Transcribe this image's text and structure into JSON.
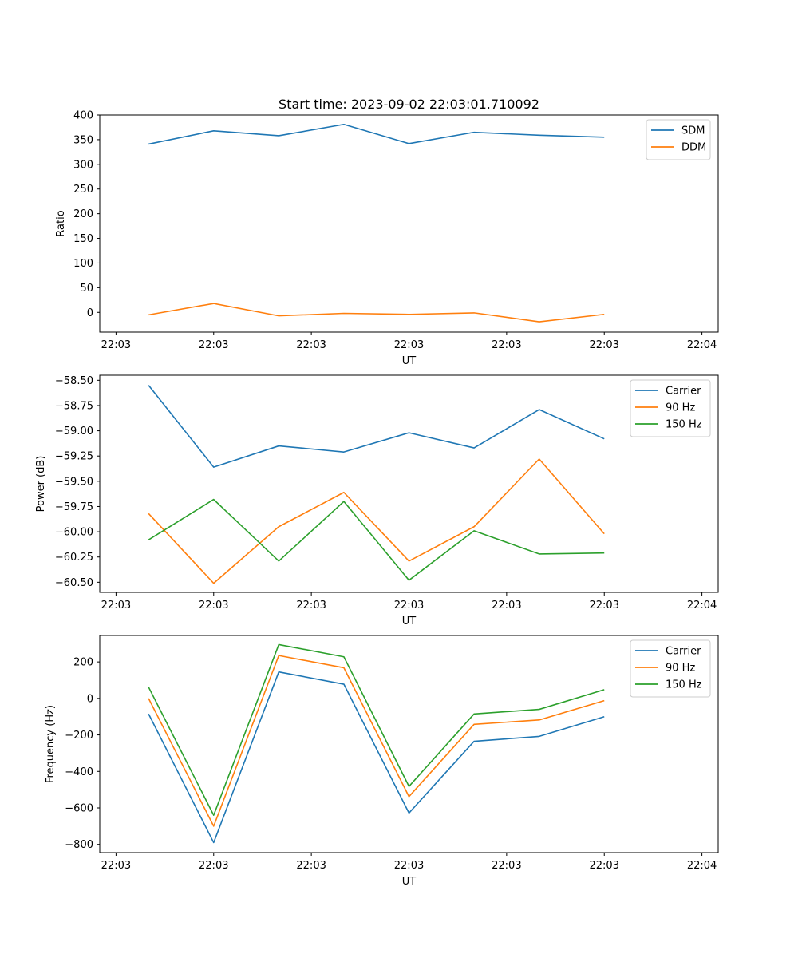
{
  "title": "Start time: 2023-09-02 22:03:01.710092",
  "colors": {
    "blue": "#1f77b4",
    "orange": "#ff7f0e",
    "green": "#2ca02c"
  },
  "chart_data": [
    {
      "type": "line",
      "xlabel": "UT",
      "ylabel": "Ratio",
      "xtick_labels": [
        "22:03",
        "22:03",
        "22:03",
        "22:03",
        "22:03",
        "22:03",
        "22:04"
      ],
      "xtick_pos": [
        -0.5,
        1,
        2.5,
        4,
        5.5,
        7,
        8.5
      ],
      "xlim": [
        -0.75,
        8.75
      ],
      "x": [
        0,
        1,
        2,
        3,
        4,
        5,
        6,
        7
      ],
      "ylim": [
        -40,
        400
      ],
      "yticks": [
        0,
        50,
        100,
        150,
        200,
        250,
        300,
        350,
        400
      ],
      "ytick_labels": [
        "0",
        "50",
        "100",
        "150",
        "200",
        "250",
        "300",
        "350",
        "400"
      ],
      "legend_location": "top-right",
      "series": [
        {
          "name": "SDM",
          "color": "#1f77b4",
          "values": [
            341,
            368,
            358,
            381,
            342,
            365,
            359,
            355
          ]
        },
        {
          "name": "DDM",
          "color": "#ff7f0e",
          "values": [
            -5,
            18,
            -7,
            -2,
            -4,
            -1,
            -19,
            -4
          ]
        }
      ]
    },
    {
      "type": "line",
      "xlabel": "UT",
      "ylabel": "Power (dB)",
      "xtick_labels": [
        "22:03",
        "22:03",
        "22:03",
        "22:03",
        "22:03",
        "22:03",
        "22:04"
      ],
      "xtick_pos": [
        -0.5,
        1,
        2.5,
        4,
        5.5,
        7,
        8.5
      ],
      "xlim": [
        -0.75,
        8.75
      ],
      "x": [
        0,
        1,
        2,
        3,
        4,
        5,
        6,
        7
      ],
      "ylim": [
        -60.6,
        -58.45
      ],
      "yticks": [
        -58.5,
        -58.75,
        -59.0,
        -59.25,
        -59.5,
        -59.75,
        -60.0,
        -60.25,
        -60.5
      ],
      "ytick_labels": [
        "−58.50",
        "−58.75",
        "−59.00",
        "−59.25",
        "−59.50",
        "−59.75",
        "−60.00",
        "−60.25",
        "−60.50"
      ],
      "legend_location": "top-right",
      "series": [
        {
          "name": "Carrier",
          "color": "#1f77b4",
          "values": [
            -58.55,
            -59.36,
            -59.15,
            -59.21,
            -59.02,
            -59.17,
            -58.79,
            -59.08
          ]
        },
        {
          "name": "90 Hz",
          "color": "#ff7f0e",
          "values": [
            -59.82,
            -60.51,
            -59.95,
            -59.61,
            -60.29,
            -59.95,
            -59.28,
            -60.02
          ]
        },
        {
          "name": "150 Hz",
          "color": "#2ca02c",
          "values": [
            -60.08,
            -59.68,
            -60.29,
            -59.7,
            -60.48,
            -59.99,
            -60.22,
            -60.21
          ]
        }
      ]
    },
    {
      "type": "line",
      "xlabel": "UT",
      "ylabel": "Frequency (Hz)",
      "xtick_labels": [
        "22:03",
        "22:03",
        "22:03",
        "22:03",
        "22:03",
        "22:03",
        "22:04"
      ],
      "xtick_pos": [
        -0.5,
        1,
        2.5,
        4,
        5.5,
        7,
        8.5
      ],
      "xlim": [
        -0.75,
        8.75
      ],
      "x": [
        0,
        1,
        2,
        3,
        4,
        5,
        6,
        7
      ],
      "ylim": [
        -845,
        345
      ],
      "yticks": [
        -800,
        -600,
        -400,
        -200,
        0,
        200
      ],
      "ytick_labels": [
        "−800",
        "−600",
        "−400",
        "−200",
        "0",
        "200"
      ],
      "legend_location": "top-right",
      "series": [
        {
          "name": "Carrier",
          "color": "#1f77b4",
          "values": [
            -85,
            -790,
            145,
            78,
            -628,
            -235,
            -208,
            -100
          ]
        },
        {
          "name": "90 Hz",
          "color": "#ff7f0e",
          "values": [
            0,
            -700,
            235,
            168,
            -538,
            -142,
            -118,
            -12
          ]
        },
        {
          "name": "150 Hz",
          "color": "#2ca02c",
          "values": [
            62,
            -640,
            295,
            228,
            -482,
            -85,
            -60,
            48
          ]
        }
      ]
    }
  ]
}
